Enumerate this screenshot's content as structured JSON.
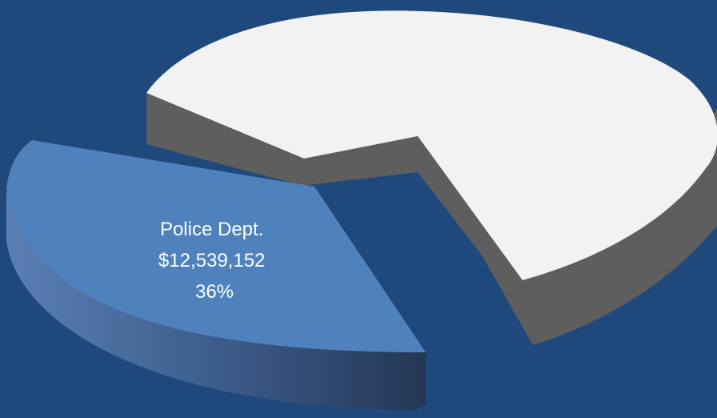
{
  "colors": {
    "background": "#1F497D",
    "highlight_top": "#4F81BD",
    "highlight_side_light": "#5B7FB4",
    "highlight_side_dark": "#243654",
    "rest_top": "#F2F2F2",
    "rest_side": "#5E5E5E",
    "label_text": "#FFFFFF"
  },
  "chart_data": {
    "type": "pie",
    "style": "3d-exploded",
    "slices": [
      {
        "label_line1": "Police Dept.",
        "value_text": "$12,539,152",
        "percent_text": "36%",
        "percent": 36,
        "exploded": true,
        "color": "#4F81BD"
      },
      {
        "percent": 64,
        "exploded": false,
        "color": "#F2F2F2"
      }
    ]
  }
}
